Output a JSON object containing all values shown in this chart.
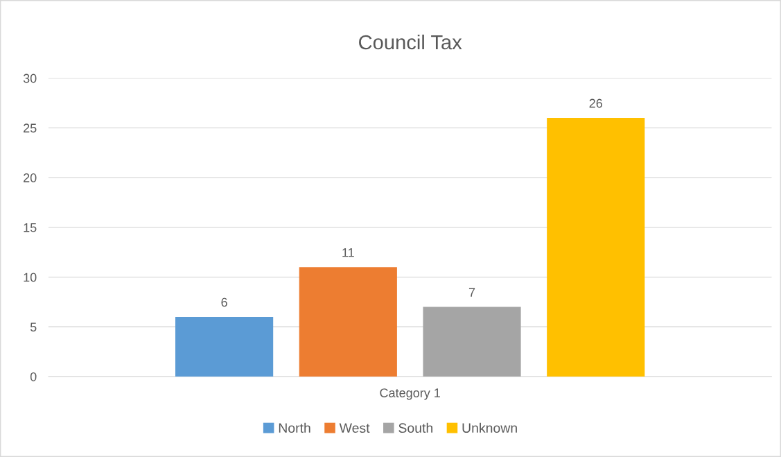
{
  "chart_data": {
    "type": "bar",
    "title": "Council Tax",
    "categories": [
      "Category 1"
    ],
    "series": [
      {
        "name": "North",
        "color": "#5b9bd5",
        "values": [
          6
        ]
      },
      {
        "name": "West",
        "color": "#ed7d31",
        "values": [
          11
        ]
      },
      {
        "name": "South",
        "color": "#a5a5a5",
        "values": [
          7
        ]
      },
      {
        "name": "Unknown",
        "color": "#ffc000",
        "values": [
          26
        ]
      }
    ],
    "ylim": [
      0,
      30
    ],
    "yticks": [
      0,
      5,
      10,
      15,
      20,
      25,
      30
    ],
    "grid": "y",
    "legend": "bottom",
    "data_labels": true
  }
}
